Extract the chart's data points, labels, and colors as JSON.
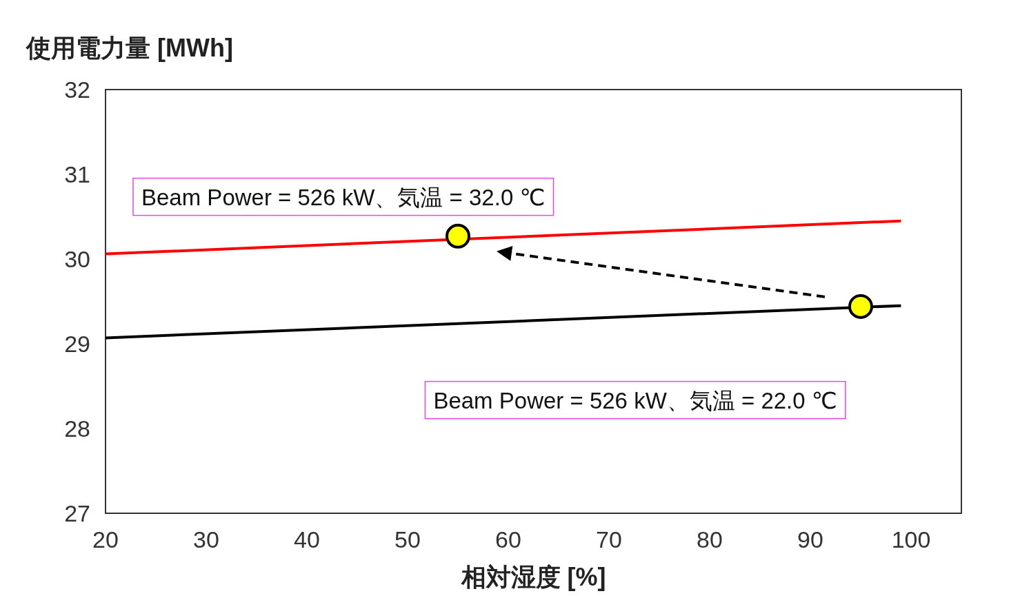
{
  "chart_data": {
    "type": "line",
    "xlabel": "相対湿度 [%]",
    "ylabel": "使用電力量 [MWh]",
    "xlim": [
      20,
      105
    ],
    "ylim": [
      27,
      32
    ],
    "xticks": [
      20,
      30,
      40,
      50,
      60,
      70,
      80,
      90,
      100
    ],
    "yticks": [
      27,
      28,
      29,
      30,
      31,
      32
    ],
    "series": [
      {
        "name": "Beam Power = 526 kW、気温 = 32.0 ℃",
        "color": "#ff0000",
        "x": [
          20,
          99
        ],
        "values": [
          30.06,
          30.45
        ]
      },
      {
        "name": "Beam Power = 526 kW、気温 = 22.0 ℃",
        "color": "#000000",
        "x": [
          20,
          99
        ],
        "values": [
          29.07,
          29.45
        ]
      },
      {
        "type": "scatter",
        "color": "#ffff00",
        "x": [
          55,
          95
        ],
        "values": [
          30.27,
          29.44
        ]
      }
    ]
  }
}
